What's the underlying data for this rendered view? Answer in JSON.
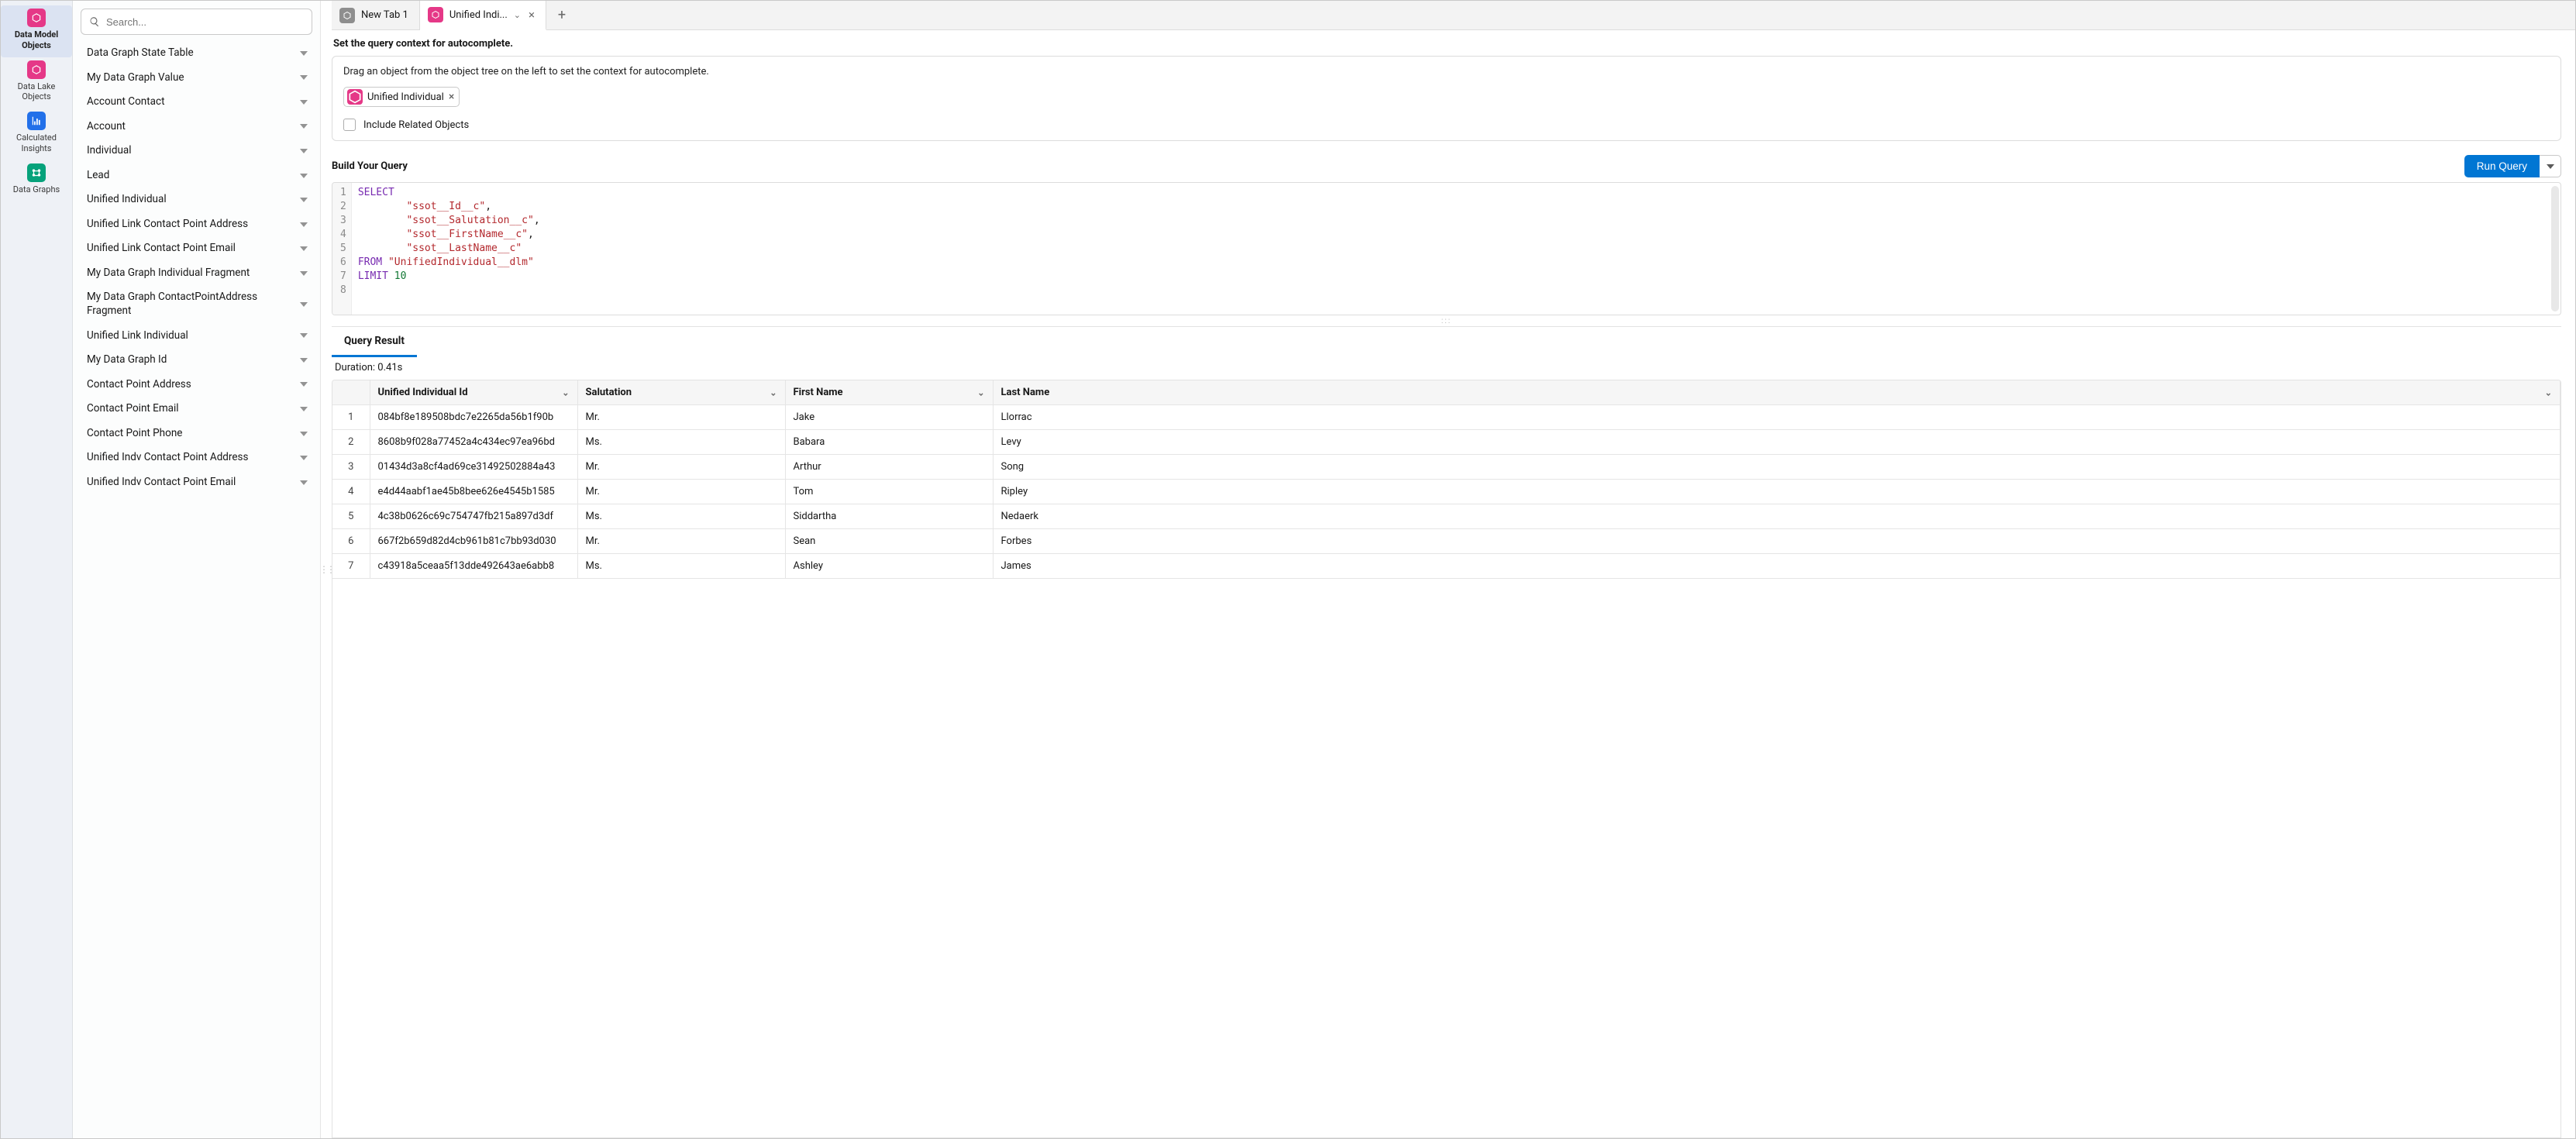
{
  "colors": {
    "brand_pink": "#e53887",
    "brand_blue": "#2270e9",
    "brand_teal": "#06a27b",
    "primary_btn": "#0176d3",
    "tab_icon_grey": "#8e8e8e"
  },
  "rail": [
    {
      "label": "Data Model Objects",
      "icon": "cube",
      "color": "#e53887",
      "active": true
    },
    {
      "label": "Data Lake Objects",
      "icon": "cube",
      "color": "#e53887",
      "active": false
    },
    {
      "label": "Calculated Insights",
      "icon": "chart",
      "color": "#2270e9",
      "active": false
    },
    {
      "label": "Data Graphs",
      "icon": "graph",
      "color": "#06a27b",
      "active": false
    }
  ],
  "search": {
    "placeholder": "Search..."
  },
  "tree": [
    "Data Graph State Table",
    "My Data Graph Value",
    "Account Contact",
    "Account",
    "Individual",
    "Lead",
    "Unified Individual",
    "Unified Link Contact Point Address",
    "Unified Link Contact Point Email",
    "My Data Graph Individual Fragment",
    "My Data Graph ContactPointAddress Fragment",
    "Unified Link Individual",
    "My Data Graph Id",
    "Contact Point Address",
    "Contact Point Email",
    "Contact Point Phone",
    "Unified Indv Contact Point Address",
    "Unified Indv Contact Point Email"
  ],
  "tabs": [
    {
      "label": "New Tab 1",
      "icon_color": "#8e8e8e",
      "active": false,
      "closable": false
    },
    {
      "label": "Unified Indi...",
      "icon_color": "#e53887",
      "active": true,
      "closable": true
    }
  ],
  "context": {
    "section_label": "Set the query context for autocomplete.",
    "hint": "Drag an object from the object tree on the left to set the context for autocomplete.",
    "chip_label": "Unified Individual",
    "chip_icon_color": "#e53887",
    "include_label": "Include Related Objects"
  },
  "query": {
    "title": "Build Your Query",
    "run_label": "Run Query",
    "lines": [
      {
        "n": 1,
        "tokens": [
          {
            "t": "SELECT",
            "c": "kw"
          }
        ]
      },
      {
        "n": 2,
        "tokens": [
          {
            "t": "        ",
            "c": ""
          },
          {
            "t": "\"ssot__Id__c\"",
            "c": "str"
          },
          {
            "t": ",",
            "c": ""
          }
        ]
      },
      {
        "n": 3,
        "tokens": [
          {
            "t": "        ",
            "c": ""
          },
          {
            "t": "\"ssot__Salutation__c\"",
            "c": "str"
          },
          {
            "t": ",",
            "c": ""
          }
        ]
      },
      {
        "n": 4,
        "tokens": [
          {
            "t": "        ",
            "c": ""
          },
          {
            "t": "\"ssot__FirstName__c\"",
            "c": "str"
          },
          {
            "t": ",",
            "c": ""
          }
        ]
      },
      {
        "n": 5,
        "tokens": [
          {
            "t": "        ",
            "c": ""
          },
          {
            "t": "\"ssot__LastName__c\"",
            "c": "str"
          }
        ]
      },
      {
        "n": 6,
        "tokens": [
          {
            "t": "FROM ",
            "c": "kw"
          },
          {
            "t": "\"UnifiedIndividual__dlm\"",
            "c": "str"
          }
        ]
      },
      {
        "n": 7,
        "tokens": [
          {
            "t": "LIMIT ",
            "c": "kw"
          },
          {
            "t": "10",
            "c": "num"
          }
        ]
      },
      {
        "n": 8,
        "tokens": []
      }
    ]
  },
  "results": {
    "tab_label": "Query Result",
    "duration_label": "Duration: 0.41s",
    "columns": [
      "",
      "Unified Individual Id",
      "Salutation",
      "First Name",
      "Last Name"
    ],
    "column_widths": [
      "48px",
      "268px",
      "268px",
      "268px",
      "auto"
    ],
    "rows": [
      [
        "1",
        "084bf8e189508bdc7e2265da56b1f90b",
        "Mr.",
        "Jake",
        "Llorrac"
      ],
      [
        "2",
        "8608b9f028a77452a4c434ec97ea96bd",
        "Ms.",
        "Babara",
        "Levy"
      ],
      [
        "3",
        "01434d3a8cf4ad69ce31492502884a43",
        "Mr.",
        "Arthur",
        "Song"
      ],
      [
        "4",
        "e4d44aabf1ae45b8bee626e4545b1585",
        "Mr.",
        "Tom",
        "Ripley"
      ],
      [
        "5",
        "4c38b0626c69c754747fb215a897d3df",
        "Ms.",
        "Siddartha",
        "Nedaerk"
      ],
      [
        "6",
        "667f2b659d82d4cb961b81c7bb93d030",
        "Mr.",
        "Sean",
        "Forbes"
      ],
      [
        "7",
        "c43918a5ceaa5f13dde492643ae6abb8",
        "Ms.",
        "Ashley",
        "James"
      ]
    ]
  }
}
